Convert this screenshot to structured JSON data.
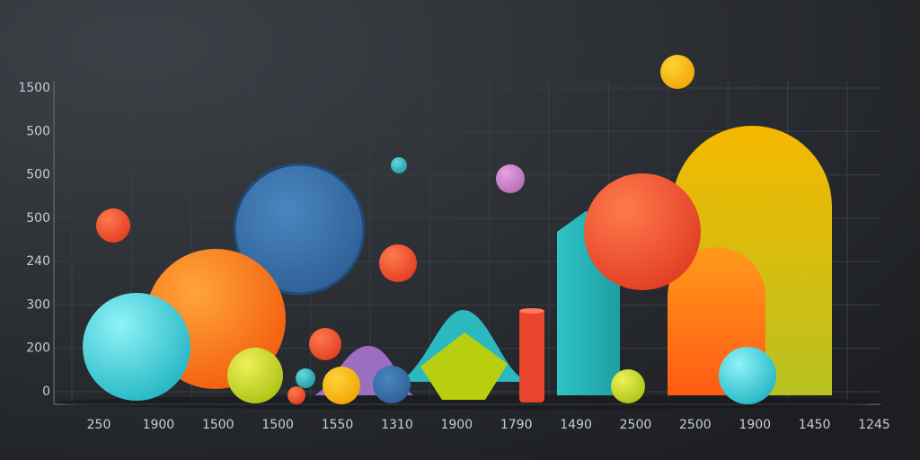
{
  "y_axis_labels": [
    1500,
    500,
    500,
    500,
    240,
    300,
    200,
    0
  ],
  "x_axis_labels": [
    250,
    1900,
    1500,
    1500,
    1550,
    1310,
    1900,
    1790,
    1490,
    2500,
    2500,
    1900,
    1450,
    1245
  ]
}
